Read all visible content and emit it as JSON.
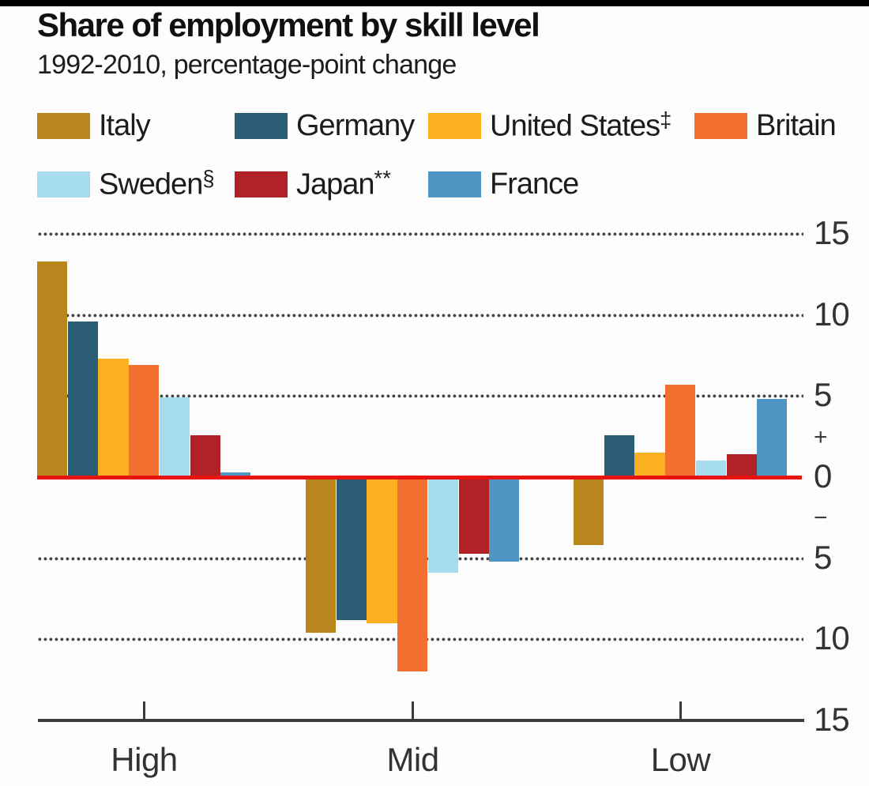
{
  "header": {
    "title": "Share of employment by skill level",
    "subtitle": "1992-2010, percentage-point change"
  },
  "colors": {
    "top_bar": "#000000",
    "zero_line": "#E8140F",
    "axis": "#3a3a3a",
    "grid_dots": "#454545",
    "text_dark": "#1c1c1c",
    "axis_text": "#333333"
  },
  "chart_data": {
    "type": "bar",
    "title": "Share of employment by skill level",
    "subtitle": "1992-2010, percentage-point change",
    "xlabel": "",
    "ylabel": "",
    "categories": [
      "High",
      "Mid",
      "Low"
    ],
    "series": [
      {
        "name": "Italy",
        "marker": "",
        "color": "#B8861D",
        "values": [
          13.3,
          -9.6,
          -4.2
        ]
      },
      {
        "name": "Germany",
        "marker": "",
        "color": "#2C5D77",
        "values": [
          9.6,
          -8.8,
          2.6
        ]
      },
      {
        "name": "United States",
        "marker": "‡",
        "color": "#FBB022",
        "values": [
          7.3,
          -9.0,
          1.5
        ]
      },
      {
        "name": "Britain",
        "marker": "",
        "color": "#F26F2F",
        "values": [
          6.9,
          -12.0,
          5.7
        ]
      },
      {
        "name": "Sweden",
        "marker": "§",
        "color": "#A6DCEE",
        "values": [
          4.9,
          -5.9,
          1.0
        ]
      },
      {
        "name": "Japan",
        "marker": "**",
        "color": "#B22125",
        "values": [
          2.6,
          -4.7,
          1.4
        ]
      },
      {
        "name": "France",
        "marker": "",
        "color": "#4E97C4",
        "values": [
          0.3,
          -5.2,
          4.8
        ]
      }
    ],
    "ylim": [
      -15,
      15
    ],
    "dotted_gridline_values": [
      15,
      10,
      5,
      -5,
      -10
    ],
    "zero_line_value": 0,
    "bottom_axis_value": -15,
    "y_axis_marks": [
      {
        "value": 15,
        "label": "15",
        "small": false
      },
      {
        "value": 10,
        "label": "10",
        "small": false
      },
      {
        "value": 5,
        "label": "5",
        "small": false
      },
      {
        "value": 2.45,
        "label": "+",
        "small": true
      },
      {
        "value": 0,
        "label": "0",
        "small": false
      },
      {
        "value": -2.55,
        "label": "−",
        "small": true
      },
      {
        "value": -5,
        "label": "5",
        "small": false
      },
      {
        "value": -10,
        "label": "10",
        "small": false
      },
      {
        "value": -15,
        "label": "15",
        "small": false
      }
    ],
    "grid": "horizontal dotted",
    "legend_position": "top"
  }
}
